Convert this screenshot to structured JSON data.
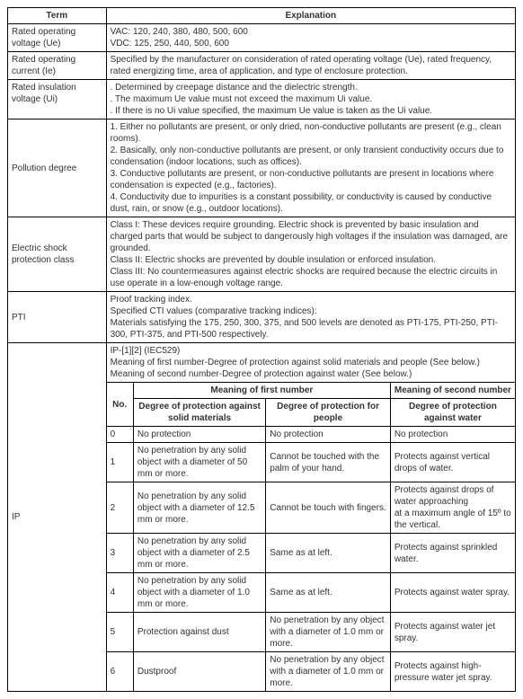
{
  "headers": {
    "term": "Term",
    "explanation": "Explanation"
  },
  "rows": [
    {
      "term": "Rated operating voltage (Ue)",
      "text": "VAC: 120, 240, 380, 480, 500, 600\nVDC: 125, 250, 440, 500, 600"
    },
    {
      "term": "Rated operating current (Ie)",
      "text": "Specified by the manufacturer on consideration of rated operating voltage (Ue), rated frequency, rated energizing time, area of application, and type of enclosure protection."
    },
    {
      "term": "Rated insulation voltage (Ui)",
      "text": ". Determined by creepage distance and the dielectric strength.\n. The maximum Ue value must not exceed the maximum Ui value.\n. If there is no Ui value specified, the maximum Ue value is taken as the Ui value."
    },
    {
      "term": "Pollution degree",
      "text": "1. Either no pollutants are present, or only dried, non-conductive pollutants are present (e.g., clean rooms).\n2. Basically, only non-conductive pollutants are present, or only transient conductivity occurs due to condensation (indoor locations, such as offices).\n3. Conductive pollutants are present, or non-conductive pollutants are present in locations where condensation is expected (e.g., factories).\n4. Conductivity due to impurities is a constant possibility, or conductivity is caused by conductive dust, rain, or snow (e.g., outdoor locations)."
    },
    {
      "term": "Electric shock protection class",
      "text": "Class I: These devices require grounding. Electric shock is prevented by basic insulation and charged parts that would be subject to dangerously high voltages if the insulation was damaged, are grounded.\nClass II: Electric shocks are prevented by double insulation or enforced insulation.\nClass III: No countermeasures against electric shocks are required because the electric circuits in use operate in a low-enough voltage range."
    },
    {
      "term": "PTI",
      "text": "Proof tracking index.\nSpecified CTI values (comparative tracking indices):\nMaterials satisfying the 175, 250, 300, 375, and 500 levels are denoted as PTI-175, PTI-250, PTI-300, PTI-375, and PTI-500 respectively."
    }
  ],
  "ip": {
    "term": "IP",
    "intro": "IP-[1][2] (IEC529)\nMeaning of first number-Degree of protection against solid materials and people (See below.)\nMeaning of second number-Degree of protection against water (See below.)",
    "headers": {
      "no": "No.",
      "first": "Meaning of first number",
      "second": "Meaning of second number",
      "solid": "Degree of protection against solid materials",
      "people": "Degree of protection for people",
      "water": "Degree of protection against water"
    },
    "rows": [
      {
        "no": "0",
        "solid": "No protection",
        "people": "No protection",
        "water": "No protection"
      },
      {
        "no": "1",
        "solid": "No penetration by any solid object with a diameter of 50 mm or more.",
        "people": "Cannot be touched with the palm of your hand.",
        "water": "Protects against vertical drops of water."
      },
      {
        "no": "2",
        "solid": "No penetration by any solid object with a diameter of 12.5 mm or more.",
        "people": "Cannot be touch with fingers.",
        "water": "Protects against drops of water approaching\nat a maximum angle of 15º to the vertical."
      },
      {
        "no": "3",
        "solid": "No penetration by any solid object with a diameter of 2.5 mm or more.",
        "people": "Same as at left.",
        "water": "Protects against sprinkled water."
      },
      {
        "no": "4",
        "solid": "No penetration by any solid object with a diameter of 1.0 mm or more.",
        "people": "Same as at left.",
        "water": "Protects against water spray."
      },
      {
        "no": "5",
        "solid": "Protection against dust",
        "people": "No penetration by any object with a diameter of 1.0 mm or more.",
        "water": "Protects against water jet spray."
      },
      {
        "no": "6",
        "solid": "Dustproof",
        "people": "No penetration by any object with a diameter of 1.0 mm or more.",
        "water": "Protects against high-pressure water jet spray."
      }
    ]
  }
}
